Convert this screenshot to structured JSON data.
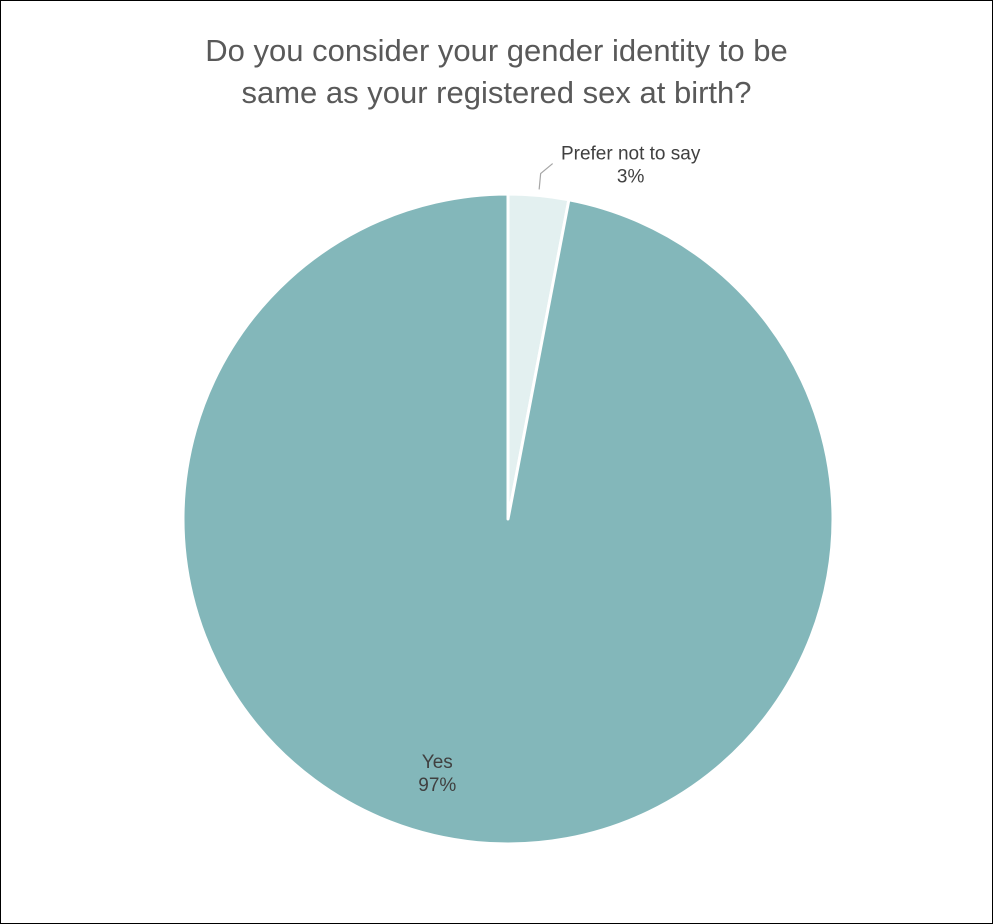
{
  "chart_data": {
    "type": "pie",
    "title_lines": [
      "Do you consider your gender identity to be",
      "same as your registered sex at birth?"
    ],
    "slices": [
      {
        "label": "Prefer not to say",
        "value": 3,
        "value_label": "3%",
        "color": "#E3F0F0"
      },
      {
        "label": "Yes",
        "value": 97,
        "value_label": "97%",
        "color": "#83B7BA"
      }
    ],
    "start_angle_deg": 0,
    "direction": "clockwise",
    "slice_border_color": "#FFFFFF",
    "legend": "none"
  }
}
